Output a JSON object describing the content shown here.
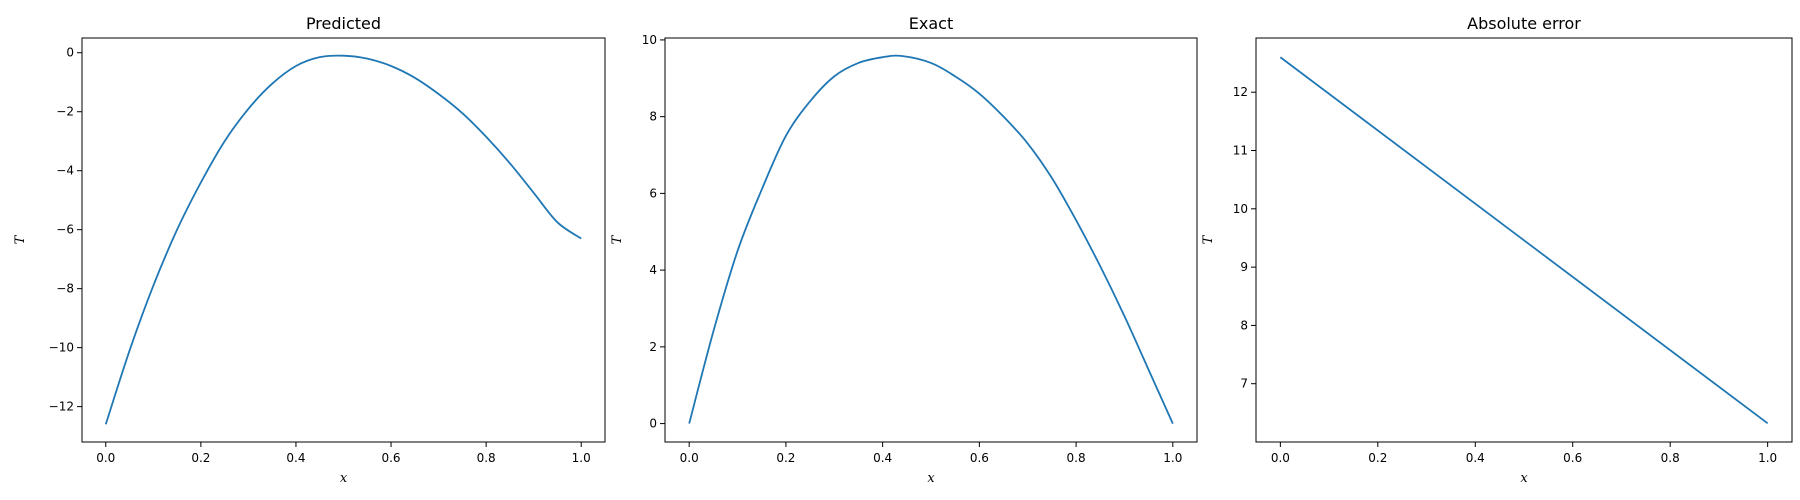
{
  "chart_data": [
    {
      "type": "line",
      "title": "Predicted",
      "xlabel": "x",
      "ylabel": "T",
      "xlim": [
        -0.05,
        1.05
      ],
      "ylim": [
        -13.2,
        0.5
      ],
      "xticks": [
        0.0,
        0.2,
        0.4,
        0.6,
        0.8,
        1.0
      ],
      "xtick_labels": [
        "0.0",
        "0.2",
        "0.4",
        "0.6",
        "0.8",
        "1.0"
      ],
      "yticks": [
        -12,
        -10,
        -8,
        -6,
        -4,
        -2,
        0
      ],
      "ytick_labels": [
        "−12",
        "−10",
        "−8",
        "−6",
        "−4",
        "−2",
        "0"
      ],
      "color": "#1f77b4",
      "series": [
        {
          "x": [
            0.0,
            0.05,
            0.1,
            0.15,
            0.2,
            0.25,
            0.3,
            0.35,
            0.4,
            0.45,
            0.5,
            0.55,
            0.6,
            0.65,
            0.7,
            0.75,
            0.8,
            0.85,
            0.9,
            0.95,
            1.0
          ],
          "y": [
            -12.6,
            -10.1,
            -7.9,
            -6.0,
            -4.4,
            -3.0,
            -1.9,
            -1.05,
            -0.45,
            -0.15,
            -0.1,
            -0.2,
            -0.45,
            -0.85,
            -1.4,
            -2.05,
            -2.85,
            -3.75,
            -4.75,
            -5.75,
            -6.3
          ]
        }
      ]
    },
    {
      "type": "line",
      "title": "Exact",
      "xlabel": "x",
      "ylabel": "T",
      "xlim": [
        -0.05,
        1.05
      ],
      "ylim": [
        -0.48,
        10.05
      ],
      "xticks": [
        0.0,
        0.2,
        0.4,
        0.6,
        0.8,
        1.0
      ],
      "xtick_labels": [
        "0.0",
        "0.2",
        "0.4",
        "0.6",
        "0.8",
        "1.0"
      ],
      "yticks": [
        0,
        2,
        4,
        6,
        8,
        10
      ],
      "ytick_labels": [
        "0",
        "2",
        "4",
        "6",
        "8",
        "10"
      ],
      "color": "#1f77b4",
      "series": [
        {
          "x": [
            0.0,
            0.05,
            0.1,
            0.15,
            0.2,
            0.25,
            0.3,
            0.35,
            0.4,
            0.44,
            0.5,
            0.55,
            0.6,
            0.65,
            0.7,
            0.75,
            0.8,
            0.85,
            0.9,
            0.95,
            1.0
          ],
          "y": [
            0.0,
            2.4,
            4.5,
            6.1,
            7.5,
            8.4,
            9.05,
            9.4,
            9.55,
            9.58,
            9.4,
            9.05,
            8.6,
            8.0,
            7.3,
            6.4,
            5.3,
            4.1,
            2.8,
            1.4,
            0.0
          ]
        }
      ]
    },
    {
      "type": "line",
      "title": "Absolute error",
      "xlabel": "x",
      "ylabel": "T",
      "xlim": [
        -0.05,
        1.05
      ],
      "ylim": [
        6.0,
        12.93
      ],
      "xticks": [
        0.0,
        0.2,
        0.4,
        0.6,
        0.8,
        1.0
      ],
      "xtick_labels": [
        "0.0",
        "0.2",
        "0.4",
        "0.6",
        "0.8",
        "1.0"
      ],
      "yticks": [
        7,
        8,
        9,
        10,
        11,
        12
      ],
      "ytick_labels": [
        "7",
        "8",
        "9",
        "10",
        "11",
        "12"
      ],
      "color": "#1f77b4",
      "series": [
        {
          "x": [
            0.0,
            1.0
          ],
          "y": [
            12.6,
            6.32
          ]
        }
      ]
    }
  ]
}
